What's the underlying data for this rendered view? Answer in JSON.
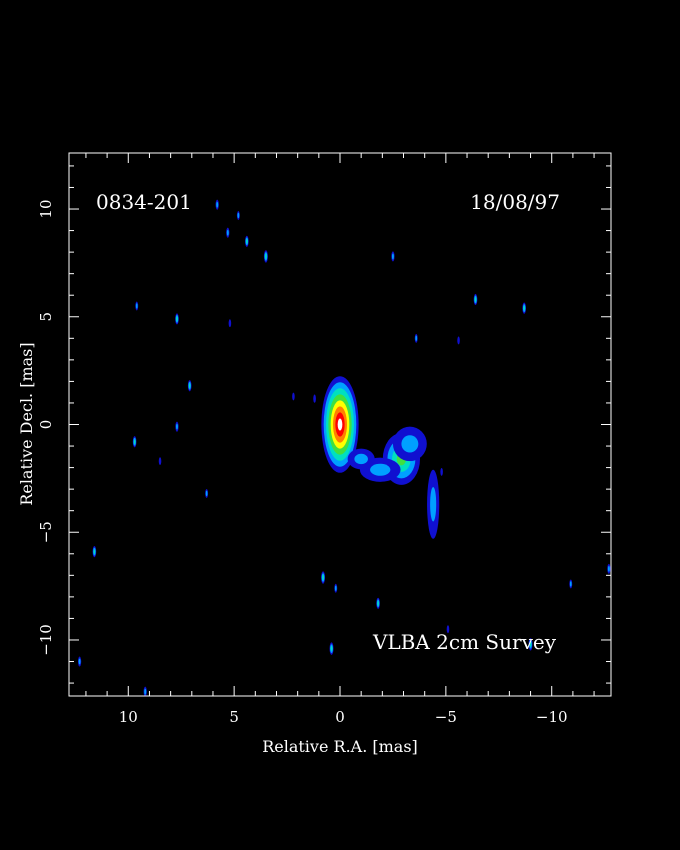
{
  "chart_data": {
    "type": "heatmap",
    "source_name": "0834-201",
    "date": "18/08/97",
    "survey": "VLBA 2cm Survey",
    "xlabel": "Relative R.A. [mas]",
    "ylabel": "Relative Decl. [mas]",
    "xlim": [
      12.8,
      -12.8
    ],
    "ylim": [
      -12.6,
      12.6
    ],
    "x_ticks": [
      10,
      5,
      0,
      -5,
      -10
    ],
    "y_ticks": [
      10,
      5,
      0,
      -5,
      -10
    ],
    "x_tick_labels": [
      "10",
      "5",
      "0",
      "−5",
      "−10"
    ],
    "y_tick_labels": [
      "10",
      "5",
      "0",
      "−5",
      "−10"
    ],
    "x_minor_step": 1,
    "y_minor_step": 1,
    "grid": false,
    "colormap": [
      "#1010d0",
      "#00a0ff",
      "#00e0c0",
      "#40e040",
      "#ffff00",
      "#ff8000",
      "#ff0000",
      "#ffffff"
    ],
    "components": [
      {
        "ra": 0.0,
        "dec": 0.0,
        "sx": 0.55,
        "sy": 1.4,
        "level": 1.0
      },
      {
        "ra": -2.9,
        "dec": -1.6,
        "sx": 0.55,
        "sy": 0.75,
        "level": 0.5
      },
      {
        "ra": -1.9,
        "dec": -2.1,
        "sx": 0.6,
        "sy": 0.35,
        "level": 0.3
      },
      {
        "ra": -4.4,
        "dec": -3.7,
        "sx": 0.18,
        "sy": 1.0,
        "level": 0.25
      },
      {
        "ra": -3.3,
        "dec": -0.9,
        "sx": 0.5,
        "sy": 0.5,
        "level": 0.28
      },
      {
        "ra": -1.0,
        "dec": -1.6,
        "sx": 0.4,
        "sy": 0.3,
        "level": 0.25
      }
    ],
    "noise_blobs": [
      {
        "ra": 5.8,
        "dec": 10.2,
        "level": 0.2
      },
      {
        "ra": 5.3,
        "dec": 8.9,
        "level": 0.2
      },
      {
        "ra": 4.4,
        "dec": 8.5,
        "level": 0.25
      },
      {
        "ra": 3.5,
        "dec": 7.8,
        "level": 0.3
      },
      {
        "ra": 4.8,
        "dec": 9.7,
        "level": 0.15
      },
      {
        "ra": 7.7,
        "dec": 4.9,
        "level": 0.25
      },
      {
        "ra": 9.6,
        "dec": 5.5,
        "level": 0.15
      },
      {
        "ra": 7.1,
        "dec": 1.8,
        "level": 0.25
      },
      {
        "ra": 7.7,
        "dec": -0.1,
        "level": 0.2
      },
      {
        "ra": 9.7,
        "dec": -0.8,
        "level": 0.25
      },
      {
        "ra": 11.6,
        "dec": -5.9,
        "level": 0.25
      },
      {
        "ra": 12.3,
        "dec": -11.0,
        "level": 0.2
      },
      {
        "ra": 9.2,
        "dec": -12.4,
        "level": 0.2
      },
      {
        "ra": 6.3,
        "dec": -3.2,
        "level": 0.15
      },
      {
        "ra": 8.5,
        "dec": -1.7,
        "level": 0.1
      },
      {
        "ra": 5.2,
        "dec": 4.7,
        "level": 0.1
      },
      {
        "ra": -2.5,
        "dec": 7.8,
        "level": 0.2
      },
      {
        "ra": -6.4,
        "dec": 5.8,
        "level": 0.25
      },
      {
        "ra": -8.7,
        "dec": 5.4,
        "level": 0.25
      },
      {
        "ra": -3.6,
        "dec": 4.0,
        "level": 0.15
      },
      {
        "ra": -5.6,
        "dec": 3.9,
        "level": 0.1
      },
      {
        "ra": 0.8,
        "dec": -7.1,
        "level": 0.3
      },
      {
        "ra": 0.2,
        "dec": -7.6,
        "level": 0.15
      },
      {
        "ra": -1.8,
        "dec": -8.3,
        "level": 0.25
      },
      {
        "ra": 0.4,
        "dec": -10.4,
        "level": 0.3
      },
      {
        "ra": -9.0,
        "dec": -10.2,
        "level": 0.3
      },
      {
        "ra": -12.7,
        "dec": -6.7,
        "level": 0.2
      },
      {
        "ra": -10.9,
        "dec": -7.4,
        "level": 0.15
      },
      {
        "ra": 2.2,
        "dec": 1.3,
        "level": 0.1
      },
      {
        "ra": 1.2,
        "dec": 1.2,
        "level": 0.12
      },
      {
        "ra": -5.1,
        "dec": -9.5,
        "level": 0.1
      },
      {
        "ra": -4.8,
        "dec": -2.2,
        "level": 0.1
      }
    ]
  }
}
